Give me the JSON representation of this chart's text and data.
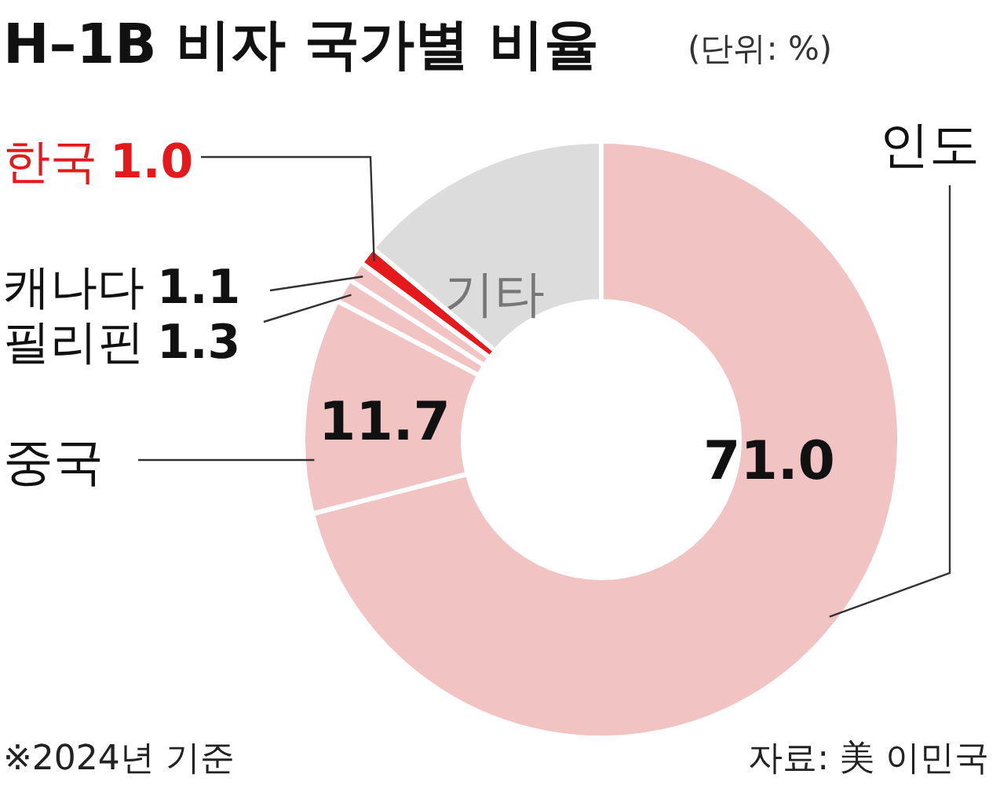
{
  "chart_data": {
    "type": "donut",
    "title": "H–1B 비자 국가별 비율",
    "subtitle": "(단위: %)",
    "categories": [
      "인도",
      "중국",
      "필리핀",
      "캐나다",
      "한국",
      "기타"
    ],
    "values": [
      71.0,
      11.7,
      1.3,
      1.1,
      1.0,
      13.9
    ],
    "value_labels": [
      "71.0",
      "11.7",
      "1.3",
      "1.1",
      "1.0",
      null
    ],
    "colors": [
      "#f2c3c3",
      "#f2c3c3",
      "#f2c3c3",
      "#f2c3c3",
      "#e3191c",
      "#dcdcdc"
    ],
    "legend": false,
    "annotations": [
      "※2024년 기준",
      "자료: 美 이민국"
    ]
  }
}
